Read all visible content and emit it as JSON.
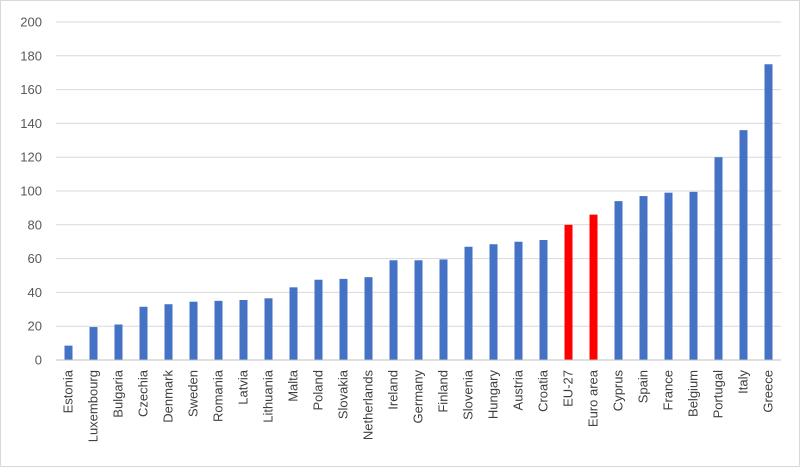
{
  "chart_data": {
    "type": "bar",
    "title": "",
    "xlabel": "",
    "ylabel": "",
    "ylim": [
      0,
      200
    ],
    "yticks": [
      0,
      20,
      40,
      60,
      80,
      100,
      120,
      140,
      160,
      180,
      200
    ],
    "grid": "horizontal",
    "legend": "none",
    "colors": {
      "default": "#4472C4",
      "highlight": "#FF0000",
      "grid": "#d9d9d9",
      "axis": "#bfbfbf"
    },
    "categories": [
      "Estonia",
      "Luxembourg",
      "Bulgaria",
      "Czechia",
      "Denmark",
      "Sweden",
      "Romania",
      "Latvia",
      "Lithuania",
      "Malta",
      "Poland",
      "Slovakia",
      "Netherlands",
      "Ireland",
      "Germany",
      "Finland",
      "Slovenia",
      "Hungary",
      "Austria",
      "Croatia",
      "EU-27",
      "Euro area",
      "Cyprus",
      "Spain",
      "France",
      "Belgium",
      "Portugal",
      "Italy",
      "Greece"
    ],
    "values": [
      8.5,
      19.5,
      21,
      31.5,
      33,
      34.5,
      35,
      35.5,
      36.5,
      43,
      47.5,
      48,
      49,
      59,
      59,
      59.5,
      67,
      68.5,
      70,
      71,
      80,
      86,
      94,
      97,
      99,
      99.5,
      120,
      136,
      175
    ],
    "highlighted": [
      "EU-27",
      "Euro area"
    ]
  }
}
